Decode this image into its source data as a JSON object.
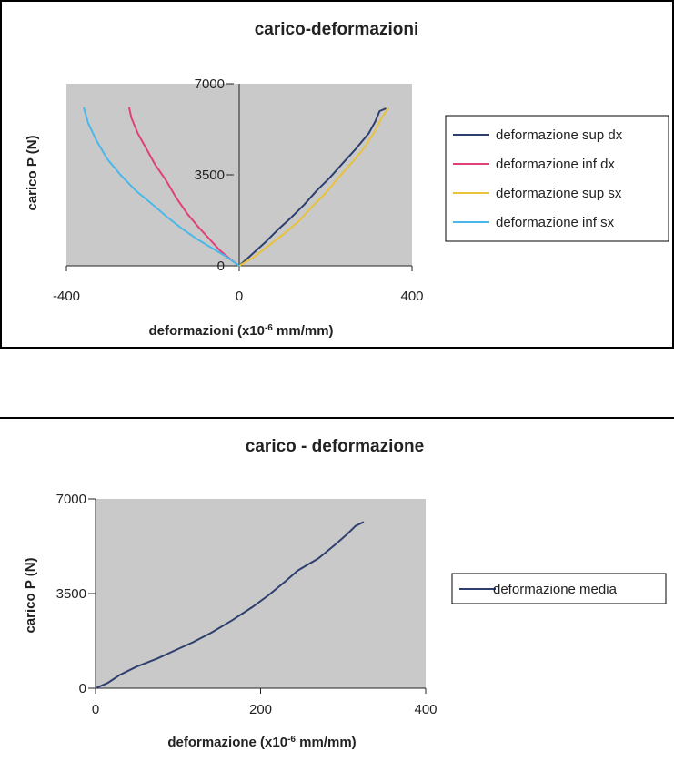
{
  "chart_data": [
    {
      "type": "line",
      "title": "carico-deformazioni",
      "xlabel": "deformazioni (x10",
      "xlabel_exp": "-6",
      "xlabel_unit": " mm/mm)",
      "ylabel": "carico P (N)",
      "xlim": [
        -400,
        400
      ],
      "ylim": [
        0,
        7000
      ],
      "xticks": [
        "-400",
        "0",
        "400"
      ],
      "yticks": [
        "0",
        "3500",
        "7000"
      ],
      "grid": false,
      "legend": "right",
      "series": [
        {
          "name": "deformazione sup dx",
          "color": "#2d3f6e",
          "x": [
            0,
            30,
            60,
            90,
            120,
            150,
            180,
            210,
            240,
            270,
            300,
            315,
            325,
            340
          ],
          "y": [
            0,
            450,
            900,
            1400,
            1850,
            2350,
            2900,
            3400,
            3950,
            4500,
            5100,
            5550,
            5950,
            6050
          ]
        },
        {
          "name": "deformazione inf dx",
          "color": "#e0407a",
          "x": [
            0,
            -20,
            -45,
            -70,
            -95,
            -120,
            -145,
            -170,
            -195,
            -215,
            -235,
            -250,
            -255
          ],
          "y": [
            0,
            250,
            600,
            1050,
            1500,
            2000,
            2600,
            3300,
            3900,
            4500,
            5100,
            5700,
            6100
          ]
        },
        {
          "name": "deformazione sup sx",
          "color": "#e8c23a",
          "x": [
            0,
            35,
            70,
            105,
            140,
            170,
            200,
            230,
            260,
            290,
            315,
            330,
            345
          ],
          "y": [
            0,
            350,
            800,
            1250,
            1750,
            2300,
            2800,
            3400,
            3950,
            4550,
            5200,
            5700,
            6050
          ]
        },
        {
          "name": "deformazione inf sx",
          "color": "#4ab8e8",
          "x": [
            0,
            -30,
            -60,
            -95,
            -130,
            -165,
            -200,
            -240,
            -275,
            -305,
            -330,
            -350,
            -360
          ],
          "y": [
            0,
            350,
            650,
            1000,
            1400,
            1850,
            2350,
            2900,
            3500,
            4100,
            4800,
            5500,
            6100
          ]
        }
      ]
    },
    {
      "type": "line",
      "title": "carico - deformazione",
      "xlabel": "deformazione (x10",
      "xlabel_exp": "-6",
      "xlabel_unit": " mm/mm)",
      "ylabel": "carico P (N)",
      "xlim": [
        0,
        400
      ],
      "ylim": [
        0,
        7000
      ],
      "xticks": [
        "0",
        "200",
        "400"
      ],
      "yticks": [
        "0",
        "3500",
        "7000"
      ],
      "grid": false,
      "legend": "right",
      "series": [
        {
          "name": "deformazione media",
          "color": "#2d3f6e",
          "x": [
            0,
            15,
            30,
            50,
            75,
            100,
            118,
            140,
            165,
            190,
            210,
            230,
            245,
            270,
            290,
            305,
            315,
            325
          ],
          "y": [
            0,
            200,
            500,
            800,
            1100,
            1450,
            1700,
            2050,
            2500,
            3000,
            3450,
            3950,
            4350,
            4800,
            5300,
            5700,
            6000,
            6150
          ]
        }
      ]
    }
  ]
}
